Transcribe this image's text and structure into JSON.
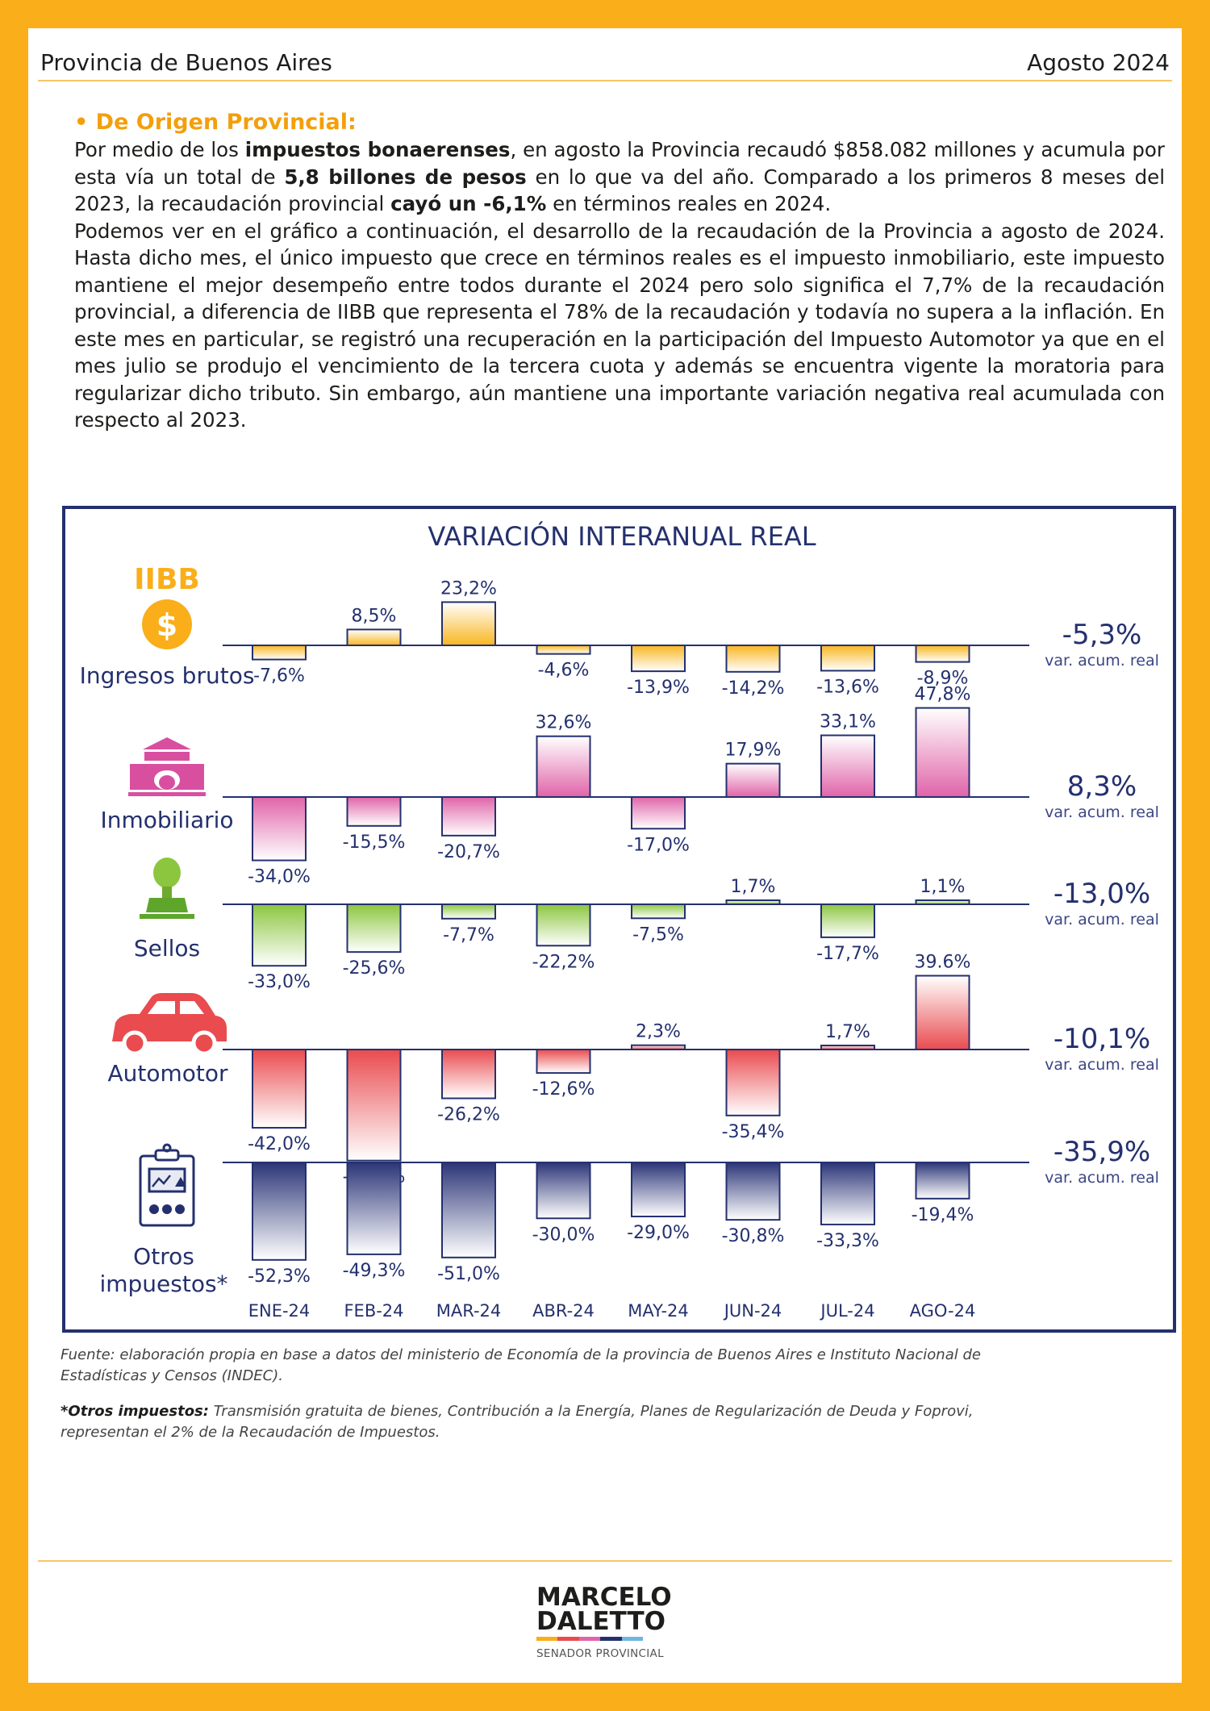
{
  "header": {
    "left": "Provincia de Buenos Aires",
    "right": "Agosto 2024"
  },
  "intro": {
    "title": "• De Origen Provincial:",
    "p1_a": "Por medio de los ",
    "p1_b": "impuestos bonaerenses",
    "p1_c": ", en agosto la Provincia recaudó $858.082 millones y acumula por esta vía un total de ",
    "p1_d": "5,8 billones de pesos",
    "p1_e": " en lo que va del año. Comparado a los primeros 8 meses del 2023, la recaudación provincial ",
    "p1_f": "cayó un -6,1%",
    "p1_g": " en términos reales en 2024.",
    "p2": "Podemos ver en el gráfico a continuación, el desarrollo de la recaudación de la Provincia a agosto de 2024. Hasta dicho mes, el único impuesto que crece en términos reales es el impuesto inmobiliario, este impuesto mantiene el mejor desempeño entre todos durante el 2024 pero solo significa el 7,7% de la recaudación provincial, a diferencia de IIBB que representa el 78% de la recaudación y todavía no supera a la inflación. En este mes en particular, se registró una recuperación en la participación del Impuesto Automotor ya que en el mes julio se produjo el vencimiento de la tercera cuota y además se encuentra vigente la moratoria para regularizar dicho tributo. Sin embargo, aún mantiene una importante variación negativa real acumulada con respecto al 2023."
  },
  "colors": {
    "page_border": "#f9ae1a",
    "navy": "#24306e",
    "iibb": "#f9b620",
    "inmobiliario": "#e064a9",
    "sellos": "#8cc63f",
    "automotor": "#e94b4f",
    "otros": "#2b3577"
  },
  "chart_data": {
    "type": "bar",
    "title": "VARIACIÓN INTERANUAL REAL",
    "categories": [
      "ENE-24",
      "FEB-24",
      "MAR-24",
      "ABR-24",
      "MAY-24",
      "JUN-24",
      "JUL-24",
      "AGO-24"
    ],
    "acum_caption": "var. acum. real",
    "series": [
      {
        "key": "iibb",
        "name": "Ingresos brutos",
        "badge": "IIBB",
        "icon": "dollar-coin-icon",
        "values": [
          -7.6,
          8.5,
          23.2,
          -4.6,
          -13.9,
          -14.2,
          -13.6,
          -8.9
        ],
        "labels": [
          "-7,6%",
          "8,5%",
          "23,2%",
          "-4,6%",
          "-13,9%",
          "-14,2%",
          "-13,6%",
          "-8,9%"
        ],
        "acum": "-5,3%"
      },
      {
        "key": "inmobiliario",
        "name": "Inmobiliario",
        "icon": "house-icon",
        "values": [
          -34.0,
          -15.5,
          -20.7,
          32.6,
          -17.0,
          17.9,
          33.1,
          47.8
        ],
        "labels": [
          "-34,0%",
          "-15,5%",
          "-20,7%",
          "32,6%",
          "-17,0%",
          "17,9%",
          "33,1%",
          "47,8%"
        ],
        "acum": "8,3%"
      },
      {
        "key": "sellos",
        "name": "Sellos",
        "icon": "stamp-icon",
        "values": [
          -33.0,
          -25.6,
          -7.7,
          -22.2,
          -7.5,
          1.7,
          -17.7,
          1.1
        ],
        "labels": [
          "-33,0%",
          "-25,6%",
          "-7,7%",
          "-22,2%",
          "-7,5%",
          "1,7%",
          "-17,7%",
          "1,1%"
        ],
        "acum": "-13,0%"
      },
      {
        "key": "automotor",
        "name": "Automotor",
        "icon": "car-icon",
        "values": [
          -42.0,
          -59.6,
          -26.2,
          -12.6,
          2.3,
          -35.4,
          1.7,
          39.6
        ],
        "labels": [
          "-42,0%",
          "-59,6%",
          "-26,2%",
          "-12,6%",
          "2,3%",
          "-35,4%",
          "1,7%",
          "39.6%"
        ],
        "acum": "-10,1%"
      },
      {
        "key": "otros",
        "name": "Otros impuestos*",
        "name_line1": "Otros",
        "name_line2": "impuestos*",
        "icon": "clipboard-report-icon",
        "values": [
          -52.3,
          -49.3,
          -51.0,
          -30.0,
          -29.0,
          -30.8,
          -33.3,
          -19.4
        ],
        "labels": [
          "-52,3%",
          "-49,3%",
          "-51,0%",
          "-30,0%",
          "-29,0%",
          "-30,8%",
          "-33,3%",
          "-19,4%"
        ],
        "acum": "-35,9%"
      }
    ]
  },
  "notes": {
    "fuente": "Fuente: elaboración propia en base a datos del ministerio de Economía de la provincia de Buenos Aires e Instituto Nacional de Estadísticas y Censos (INDEC).",
    "otros_label": "*Otros impuestos:",
    "otros_text": " Transmisión gratuita de bienes, Contribución a la Energía, Planes de Regularización de Deuda y Foprovi, representan el 2% de la Recaudación de Impuestos."
  },
  "logo": {
    "line1": "MARCELO",
    "line2": "DALETTO",
    "sub": "SENADOR PROVINCIAL"
  }
}
